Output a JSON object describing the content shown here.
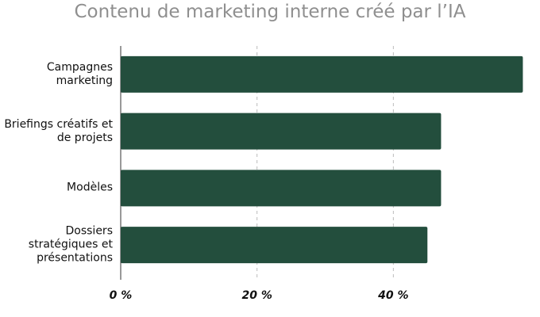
{
  "chart_data": {
    "type": "bar",
    "orientation": "horizontal",
    "title": "Contenu de marketing interne créé par l’IA",
    "categories": [
      "Campagnes marketing",
      "Briefings créatifs et de projets",
      "Modèles",
      "Dossiers stratégiques et présentations"
    ],
    "values": [
      59,
      47,
      47,
      45
    ],
    "color": "#234e3d",
    "xlim": [
      0,
      60
    ],
    "xticks": [
      {
        "value": 0,
        "label": "0 %"
      },
      {
        "value": 20,
        "label": "20 %"
      },
      {
        "value": 40,
        "label": "40 %"
      }
    ],
    "grid": true
  }
}
